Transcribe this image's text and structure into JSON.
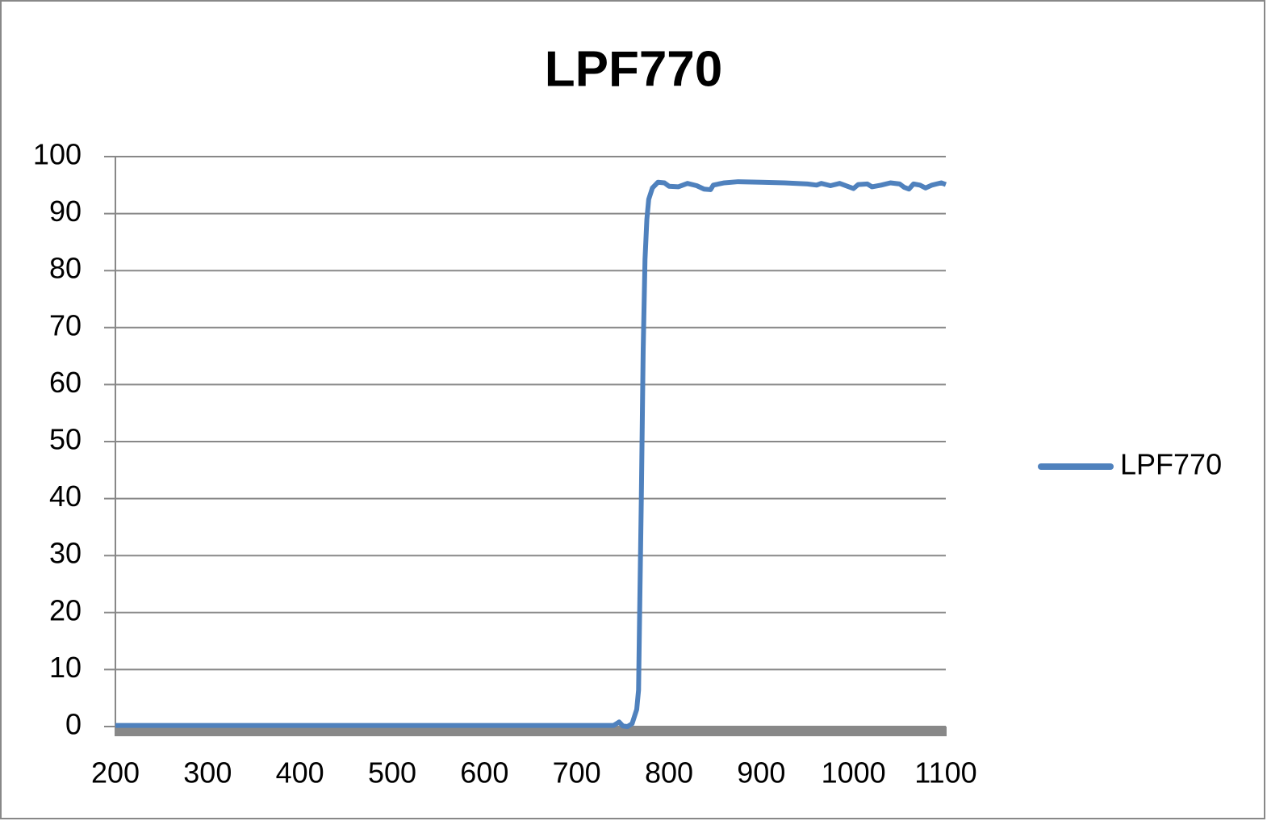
{
  "chart_data": {
    "type": "line",
    "title": "LPF770",
    "x": [
      200,
      250,
      300,
      350,
      400,
      450,
      500,
      550,
      600,
      650,
      700,
      740,
      746,
      750,
      755,
      760,
      765,
      767,
      768,
      770,
      772,
      774,
      776,
      778,
      782,
      788,
      795,
      800,
      810,
      820,
      830,
      838,
      845,
      848,
      860,
      875,
      900,
      925,
      950,
      960,
      965,
      975,
      985,
      1000,
      1005,
      1015,
      1020,
      1030,
      1040,
      1050,
      1055,
      1060,
      1065,
      1072,
      1078,
      1085,
      1090,
      1095,
      1100
    ],
    "series": [
      {
        "name": "LPF770",
        "color": "#4f81bd",
        "values": [
          0.2,
          0.2,
          0.2,
          0.2,
          0.2,
          0.2,
          0.2,
          0.2,
          0.2,
          0.2,
          0.2,
          0.2,
          0.8,
          0.1,
          0.0,
          0.5,
          3,
          6.4,
          18,
          40,
          66,
          82,
          89,
          92.5,
          94.5,
          95.5,
          95.4,
          94.8,
          94.7,
          95.3,
          94.9,
          94.3,
          94.2,
          95,
          95.4,
          95.6,
          95.5,
          95.4,
          95.2,
          95.0,
          95.3,
          94.9,
          95.3,
          94.4,
          95.1,
          95.2,
          94.7,
          95.0,
          95.4,
          95.2,
          94.6,
          94.3,
          95.2,
          95.0,
          94.5,
          95.0,
          95.2,
          95.4,
          95.1
        ]
      }
    ],
    "xlim": [
      200,
      1100
    ],
    "xticks": [
      200,
      300,
      400,
      500,
      600,
      700,
      800,
      900,
      1000,
      1100
    ],
    "ylim": [
      0,
      100
    ],
    "yticks": [
      0,
      10,
      20,
      30,
      40,
      50,
      60,
      70,
      80,
      90,
      100
    ],
    "grid": true,
    "legend": "right"
  }
}
